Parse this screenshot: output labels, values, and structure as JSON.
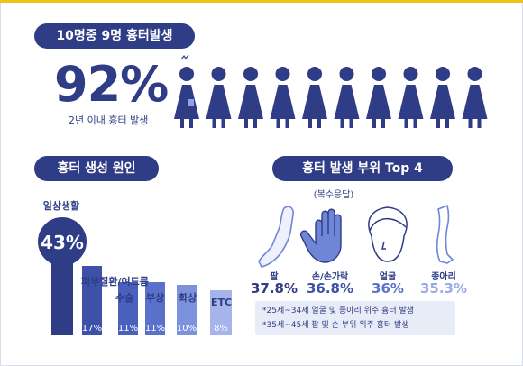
{
  "titles": {
    "stat": "10명중 9명 흉터발생",
    "cause": "흉터 생성 원인",
    "part": "흉터 발생 부위 Top 4"
  },
  "stat": {
    "value": "92%",
    "caption": "2년 이내 흉터 발생"
  },
  "people_icons": {
    "total": 10,
    "highlighted": 1
  },
  "chart_data": [
    {
      "type": "bar",
      "title": "흉터 생성 원인",
      "categories": [
        "일상생활",
        "피부질환/여드름",
        "수술",
        "부상",
        "화상",
        "ETC"
      ],
      "values": [
        43,
        17,
        11,
        11,
        10,
        8
      ],
      "value_labels": [
        "43%",
        "17%",
        "11%",
        "11%",
        "10%",
        "8%"
      ],
      "colors": [
        "#2f3c86",
        "#3e51a8",
        "#4a60bd",
        "#5a71cb",
        "#7d92dd",
        "#a5b4ea"
      ]
    },
    {
      "type": "table",
      "title": "흉터 발생 부위 Top 4",
      "subtitle": "(복수응답)",
      "categories": [
        "팔",
        "손/손가락",
        "얼굴",
        "종아리"
      ],
      "values": [
        37.8,
        36.8,
        36,
        35.3
      ],
      "value_labels": [
        "37.8%",
        "36.8%",
        "36%",
        "35.3%"
      ],
      "icons": [
        "arm-icon",
        "hand-icon",
        "face-icon",
        "leg-icon"
      ],
      "colors": [
        "#2f3c86",
        "#3e51a8",
        "#5a71cb",
        "#9aaae4"
      ]
    }
  ],
  "notes": [
    "*25세~34세  얼굴 및 종아리 위주 흉터 발생",
    "*35세~45세  팔 및 손 부위 위주 흉터 발생"
  ]
}
